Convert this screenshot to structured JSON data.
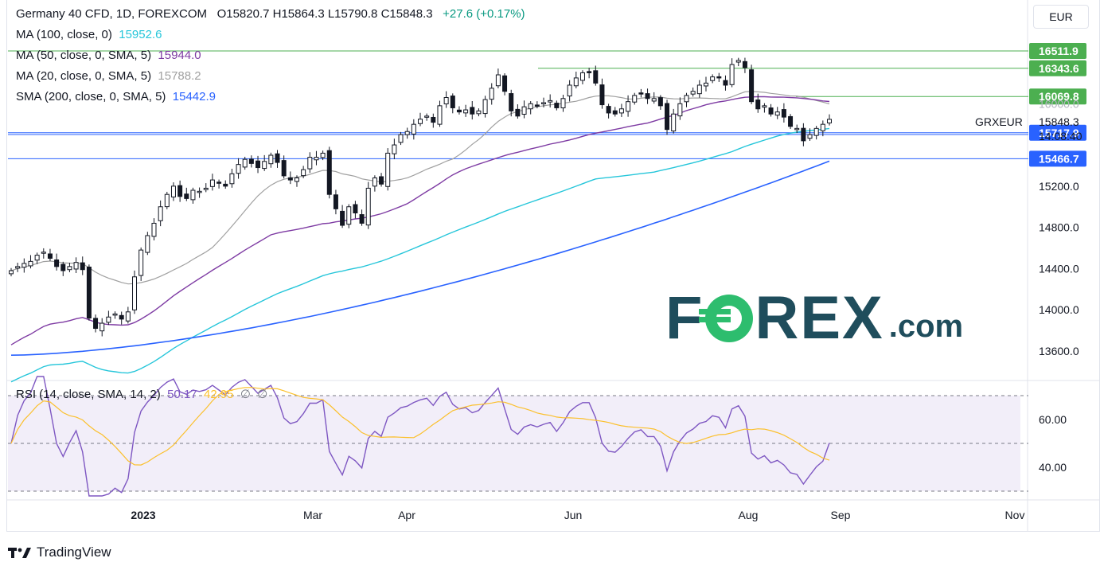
{
  "header": {
    "symbol": "Germany 40 CFD, 1D, FOREXCOM",
    "ohlc": "O15820.7  H15864.3  L15790.8  C15848.3",
    "change": "+27.6 (+0.17%)",
    "currency": "EUR"
  },
  "indicators": [
    {
      "label": "MA (100, close, 0)",
      "value": "15952.6",
      "color": "#26c6da"
    },
    {
      "label": "MA (50, close, 0, SMA, 5)",
      "value": "15944.0",
      "color": "#7e3ba3"
    },
    {
      "label": "MA (20, close, 0, SMA, 5)",
      "value": "15788.2",
      "color": "#a0a0a0"
    },
    {
      "label": "SMA (200, close, 0, SMA, 5)",
      "value": "15442.9",
      "color": "#2962ff"
    }
  ],
  "rsi_legend": {
    "label": "RSI (14, close, SMA, 14, 2)",
    "rsi": "50.17",
    "sma": "42.95",
    "extra1": "∅",
    "extra2": "∅"
  },
  "price_axis": {
    "ticks": [
      "15200.0",
      "14800.0",
      "14400.0",
      "14000.0",
      "13600.0"
    ],
    "labels": [
      {
        "text": "16511.9",
        "bg": "#4caf50",
        "fg": "#ffffff"
      },
      {
        "text": "16343.6",
        "bg": "#4caf50",
        "fg": "#ffffff"
      },
      {
        "text": "16069.8",
        "bg": "#4caf50",
        "fg": "#ffffff"
      },
      {
        "text": "16000.0",
        "bg": "#ffffff",
        "fg": "#b2b5be"
      },
      {
        "text": "15717.9",
        "bg": "#2962ff",
        "fg": "#ffffff"
      },
      {
        "text": "15466.7",
        "bg": "#2962ff",
        "fg": "#ffffff"
      }
    ],
    "last_symbol": "GRXEUR",
    "last_price": "15848.3",
    "countdown": "14:08:40"
  },
  "rsi_axis": {
    "ticks": [
      "60.00",
      "40.00"
    ]
  },
  "time_axis": [
    "2023",
    "Mar",
    "Apr",
    "Jun",
    "Aug",
    "Sep",
    "Nov"
  ],
  "branding": {
    "tradingview": "TradingView",
    "logo_main": "F",
    "logo_rest": "REX",
    "logo_com": ".com"
  },
  "chart_data": {
    "type": "candlestick",
    "title": "Germany 40 CFD, 1D, FOREXCOM",
    "ylim": [
      13300,
      16600
    ],
    "horizontal_levels": [
      16511.9,
      16343.6,
      16069.8,
      15717.9,
      15466.7
    ],
    "x_labels": [
      "2023",
      "Mar",
      "Apr",
      "Jun",
      "Aug",
      "Sep",
      "Nov"
    ],
    "close_series": [
      14380,
      14420,
      14450,
      14470,
      14530,
      14560,
      14500,
      14420,
      14380,
      14420,
      14460,
      14390,
      13920,
      13820,
      13870,
      13930,
      13960,
      13910,
      13980,
      14320,
      14580,
      14720,
      14840,
      15000,
      15120,
      15200,
      15100,
      15080,
      15160,
      15150,
      15180,
      15260,
      15230,
      15200,
      15320,
      15410,
      15460,
      15420,
      15380,
      15440,
      15500,
      15430,
      15300,
      15260,
      15280,
      15360,
      15480,
      15480,
      15520,
      15120,
      14980,
      14820,
      15000,
      14940,
      14840,
      15180,
      15280,
      15220,
      15520,
      15600,
      15700,
      15730,
      15800,
      15850,
      15880,
      15820,
      15980,
      16060,
      15960,
      15920,
      15940,
      15900,
      15930,
      16040,
      16150,
      16280,
      16120,
      15930,
      15880,
      15970,
      16000,
      15980,
      16010,
      16030,
      15960,
      16050,
      16180,
      16250,
      16300,
      16300,
      16200,
      15990,
      15910,
      15900,
      15950,
      16020,
      16080,
      16100,
      16050,
      16050,
      15980,
      15750,
      15900,
      16000,
      16080,
      16120,
      16180,
      16200,
      16260,
      16250,
      16180,
      16380,
      16420,
      16350,
      16020,
      15950,
      15980,
      15900,
      15920,
      15870,
      15780,
      15760,
      15640,
      15700,
      15760,
      15800,
      15848.3
    ],
    "series": [
      {
        "name": "MA (100, close, 0)",
        "last": 15952.6
      },
      {
        "name": "MA (50, close, 0, SMA, 5)",
        "last": 15944.0
      },
      {
        "name": "MA (20, close, 0, SMA, 5)",
        "last": 15788.2
      },
      {
        "name": "SMA (200, close, 0, SMA, 5)",
        "last": 15442.9
      }
    ],
    "rsi": {
      "ylim": [
        25,
        80
      ],
      "levels": [
        70,
        50,
        30
      ],
      "last_rsi": 50.17,
      "last_sma": 42.95
    }
  }
}
